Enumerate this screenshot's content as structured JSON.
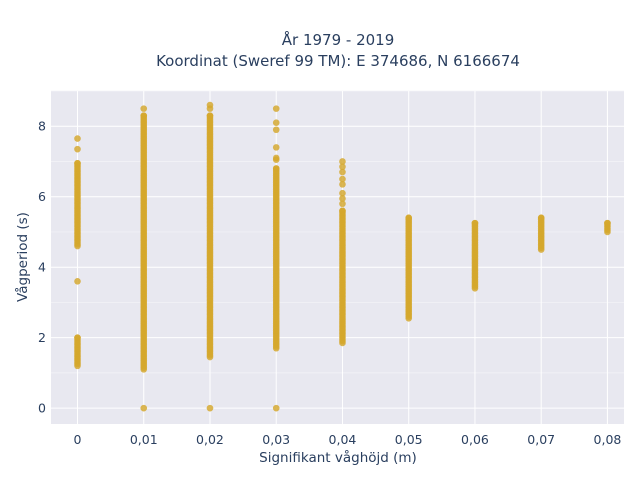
{
  "chart_data": {
    "type": "scatter",
    "title": [
      "År 1979 - 2019",
      "Koordinat (Sweref 99 TM): E 374686, N 6166674"
    ],
    "xlabel": "Signifikant våghöjd (m)",
    "ylabel": "Vågperiod (s)",
    "x_ticks": [
      "0",
      "0,01",
      "0,02",
      "0,03",
      "0,04",
      "0,05",
      "0,06",
      "0,07",
      "0,08"
    ],
    "y_ticks": [
      "0",
      "2",
      "4",
      "6",
      "8"
    ],
    "xlim": [
      -0.004,
      0.0825
    ],
    "ylim": [
      -0.45,
      9.0
    ],
    "grid": true,
    "marker_color": "#d4a72c",
    "plot_background": "#e8e8f0",
    "series": [
      {
        "x_values": [
          0,
          0.01,
          0.02,
          0.03,
          0.04,
          0.05,
          0.06,
          0.07,
          0.08
        ],
        "y_ranges": [
          [
            [
              4.6,
              6.95
            ],
            [
              1.2,
              2.0
            ]
          ],
          [
            [
              1.1,
              8.3
            ]
          ],
          [
            [
              1.45,
              8.3
            ]
          ],
          [
            [
              1.7,
              6.8
            ]
          ],
          [
            [
              1.85,
              5.6
            ]
          ],
          [
            [
              2.55,
              5.4
            ]
          ],
          [
            [
              3.4,
              5.25
            ]
          ],
          [
            [
              4.5,
              5.4
            ]
          ],
          [
            [
              5.0,
              5.25
            ]
          ]
        ],
        "y_points": [
          [
            7.65,
            7.35,
            3.6
          ],
          [
            8.5,
            0.0
          ],
          [
            8.6,
            8.5,
            0.0
          ],
          [
            8.5,
            8.1,
            7.9,
            7.4,
            7.1,
            7.05,
            0.0
          ],
          [
            7.0,
            6.85,
            6.7,
            6.5,
            6.35,
            6.1,
            5.95,
            5.8
          ],
          [],
          [],
          [],
          []
        ]
      }
    ]
  }
}
